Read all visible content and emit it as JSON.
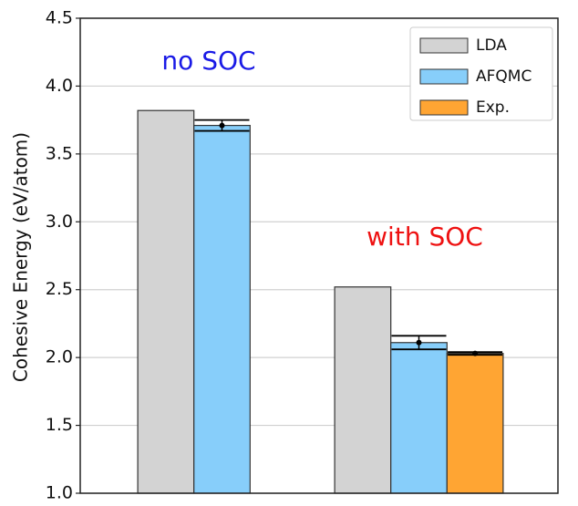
{
  "chart_data": {
    "type": "bar",
    "y_label": "Cohesive Energy (eV/atom)",
    "categories": [
      null,
      null
    ],
    "series": [
      {
        "name": "LDA",
        "color": "#d3d3d3",
        "values": [
          3.82,
          2.52
        ]
      },
      {
        "name": "AFQMC",
        "color": "#87cefa",
        "values": [
          3.71,
          2.11
        ],
        "errors": [
          0.04,
          0.05
        ]
      },
      {
        "name": "Exp.",
        "color": "#ffa533",
        "values": [
          null,
          2.03
        ],
        "errors": [
          null,
          0.01
        ]
      }
    ],
    "annotations": [
      {
        "text": "no SOC",
        "color": "#1a1ae6"
      },
      {
        "text": "with SOC",
        "color": "#ee1111"
      }
    ],
    "ylim": [
      1.0,
      4.5
    ],
    "yticks": [
      {
        "value": 1.0,
        "label": "1.0"
      },
      1.5,
      {
        "value": 2.0,
        "label": "2.0"
      },
      2.5,
      {
        "value": 3.0,
        "label": "3.0"
      },
      3.5,
      {
        "value": 4.0,
        "label": "4.0"
      },
      4.5
    ],
    "grid": true,
    "legend": "upper right"
  }
}
